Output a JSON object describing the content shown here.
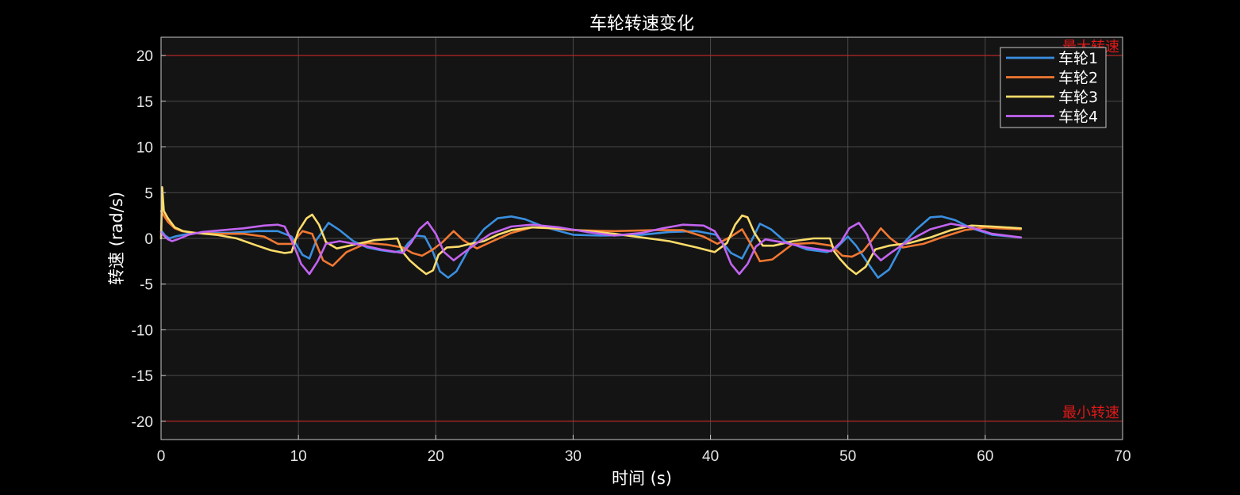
{
  "chart_data": {
    "type": "line",
    "title": "车轮转速变化",
    "xlabel": "时间 (s)",
    "ylabel": "转速 (rad/s)",
    "xlim": [
      0,
      70
    ],
    "ylim": [
      -22,
      22
    ],
    "xticks": [
      0,
      10,
      20,
      30,
      40,
      50,
      60,
      70
    ],
    "yticks": [
      -20,
      -15,
      -10,
      -5,
      0,
      5,
      10,
      15,
      20
    ],
    "grid": true,
    "legend_position": "top-right",
    "colors": {
      "background": "#000000",
      "axes_background": "#141414",
      "grid": "#4a4a4a",
      "axes_border": "#c8c8c8",
      "reference_line": "#cc2222",
      "reference_text": "#e01818"
    },
    "reference_lines": [
      {
        "y": 20,
        "label": "最大转速"
      },
      {
        "y": -20,
        "label": "最小转速"
      }
    ],
    "series": [
      {
        "name": "车轮1",
        "color": "#3a8fe0",
        "x": [
          0,
          0.1,
          0.3,
          0.6,
          1,
          2,
          3,
          5,
          7,
          8.5,
          9.5,
          10.3,
          10.8,
          11.3,
          12.2,
          13,
          14,
          15,
          16,
          17,
          17.6,
          18,
          18.6,
          19.2,
          19.8,
          20.3,
          20.9,
          21.5,
          22.5,
          23.5,
          24.5,
          25.5,
          26.5,
          28,
          30,
          32,
          35,
          37,
          39,
          40.4,
          41.5,
          42.3,
          43,
          43.6,
          44.4,
          45.4,
          47,
          48.5,
          49.2,
          50,
          50.6,
          51.4,
          52.2,
          53,
          54,
          55,
          56,
          56.8,
          57.8,
          59,
          60.5,
          62.6
        ],
        "y": [
          0.8,
          0.7,
          0.3,
          0,
          0.2,
          0.5,
          0.6,
          0.6,
          0.8,
          0.8,
          0.2,
          -1.8,
          -2.2,
          -0.2,
          1.7,
          0.9,
          -0.3,
          -1,
          -1.3,
          -1.5,
          -1.3,
          -0.5,
          0.3,
          0.2,
          -1.5,
          -3.6,
          -4.3,
          -3.6,
          -0.9,
          1,
          2.2,
          2.4,
          2.1,
          1.2,
          0.4,
          0.3,
          0.4,
          0.7,
          0.8,
          0.4,
          -1.6,
          -2.2,
          -0.2,
          1.6,
          1,
          -0.3,
          -1.2,
          -1.5,
          -1,
          0.2,
          -0.8,
          -2.6,
          -4.3,
          -3.4,
          -0.6,
          1,
          2.3,
          2.4,
          2,
          1.1,
          0.4,
          0.1
        ]
      },
      {
        "name": "车轮2",
        "color": "#f07832",
        "x": [
          0,
          0.2,
          0.5,
          1,
          1.5,
          2.5,
          4,
          6,
          7.5,
          8.5,
          9.5,
          10.3,
          11,
          11.8,
          12.5,
          13.5,
          15,
          16.5,
          17.6,
          18.3,
          19,
          19.8,
          20.5,
          21.3,
          22,
          23,
          24,
          25.5,
          27,
          28.5,
          30,
          33,
          36,
          38,
          39.5,
          40.5,
          41.5,
          42.3,
          43,
          43.6,
          44.5,
          46,
          47.5,
          48.8,
          49.6,
          50.3,
          51.1,
          51.8,
          52.4,
          53.1,
          54,
          55.5,
          57,
          58.5,
          60,
          61,
          62.6
        ],
        "y": [
          3,
          2.5,
          1.8,
          1.1,
          0.8,
          0.6,
          0.5,
          0.5,
          0.2,
          -0.6,
          -0.6,
          0.8,
          0.5,
          -2.4,
          -3,
          -1.5,
          -0.5,
          -0.7,
          -1,
          -1.6,
          -1.9,
          -1.2,
          -0.4,
          0.8,
          -0.2,
          -1.1,
          -0.4,
          0.6,
          1.2,
          1.1,
          0.9,
          0.8,
          0.9,
          0.9,
          0.2,
          -0.6,
          0.2,
          1,
          -0.8,
          -2.5,
          -2.3,
          -0.6,
          -0.5,
          -0.8,
          -1.9,
          -2,
          -1.4,
          -0.1,
          1.1,
          0,
          -1,
          -0.6,
          0.2,
          0.9,
          1.2,
          1.1,
          1
        ]
      },
      {
        "name": "车轮3",
        "color": "#fcdc6a",
        "x": [
          0,
          0.08,
          0.2,
          0.5,
          1,
          1.6,
          2.5,
          4,
          5.5,
          7,
          8,
          9,
          9.5,
          10,
          10.6,
          11,
          11.5,
          12,
          12.8,
          14,
          15.5,
          17.2,
          17.6,
          18.1,
          18.7,
          19.3,
          19.8,
          20.2,
          20.8,
          21.7,
          22.5,
          23.5,
          24.5,
          25.5,
          27,
          29,
          31,
          33,
          35,
          37,
          39,
          40.3,
          41.2,
          41.8,
          42.3,
          42.7,
          43.2,
          43.8,
          44.6,
          46,
          47.5,
          48.7,
          49,
          49.4,
          50,
          50.6,
          51.3,
          52,
          53,
          54.5,
          56,
          57.5,
          59,
          60.5,
          62.6
        ],
        "y": [
          0,
          5.6,
          3,
          2.2,
          1.2,
          0.8,
          0.6,
          0.4,
          0,
          -0.8,
          -1.3,
          -1.6,
          -1.5,
          0.8,
          2.2,
          2.6,
          1.5,
          -0.4,
          -1.1,
          -0.7,
          -0.2,
          0,
          -1.5,
          -2.4,
          -3.2,
          -3.9,
          -3.5,
          -1.8,
          -1,
          -0.9,
          -0.6,
          -0.3,
          0.4,
          0.9,
          1.2,
          1.1,
          0.8,
          0.5,
          0.1,
          -0.3,
          -1,
          -1.5,
          -0.5,
          1.5,
          2.5,
          2.3,
          0.6,
          -0.8,
          -0.8,
          -0.3,
          0,
          0,
          -1.4,
          -2.2,
          -3.2,
          -3.9,
          -3.1,
          -1.2,
          -0.8,
          -0.5,
          0.1,
          0.9,
          1.4,
          1.3,
          1.1
        ]
      },
      {
        "name": "车轮4",
        "color": "#c264f0",
        "x": [
          0,
          0.15,
          0.5,
          0.8,
          1.2,
          2,
          3,
          4.5,
          6,
          7.5,
          8.5,
          9,
          9.6,
          10.2,
          10.8,
          11.4,
          12,
          13,
          14.5,
          16,
          17.6,
          18.2,
          18.8,
          19.4,
          20,
          20.6,
          21.3,
          22,
          23,
          24,
          25.5,
          27,
          29,
          31,
          33,
          35,
          36.5,
          38,
          39.5,
          40.3,
          40.9,
          41.5,
          42.1,
          42.7,
          43.3,
          44,
          45.5,
          47,
          48.8,
          49.5,
          50.1,
          50.8,
          51.4,
          51.9,
          52.4,
          53.2,
          54.5,
          56,
          57.5,
          59,
          60.5,
          62.6
        ],
        "y": [
          0.7,
          0.4,
          -0.1,
          -0.3,
          -0.1,
          0.4,
          0.7,
          0.9,
          1.1,
          1.4,
          1.5,
          1.3,
          -0.5,
          -2.8,
          -3.9,
          -2.5,
          -0.6,
          -0.3,
          -0.7,
          -1.2,
          -1.6,
          -0.5,
          1,
          1.8,
          0.5,
          -1.5,
          -2.4,
          -1.6,
          -0.5,
          0.5,
          1.3,
          1.5,
          1.2,
          0.7,
          0.3,
          0.6,
          1.1,
          1.5,
          1.4,
          0.8,
          -0.6,
          -2.8,
          -3.9,
          -2.8,
          -0.9,
          -0.1,
          -0.5,
          -1,
          -1.4,
          -0.4,
          1.1,
          1.7,
          0.4,
          -1.6,
          -2.4,
          -1.5,
          -0.2,
          1,
          1.6,
          1.2,
          0.5,
          0.1
        ]
      }
    ]
  }
}
